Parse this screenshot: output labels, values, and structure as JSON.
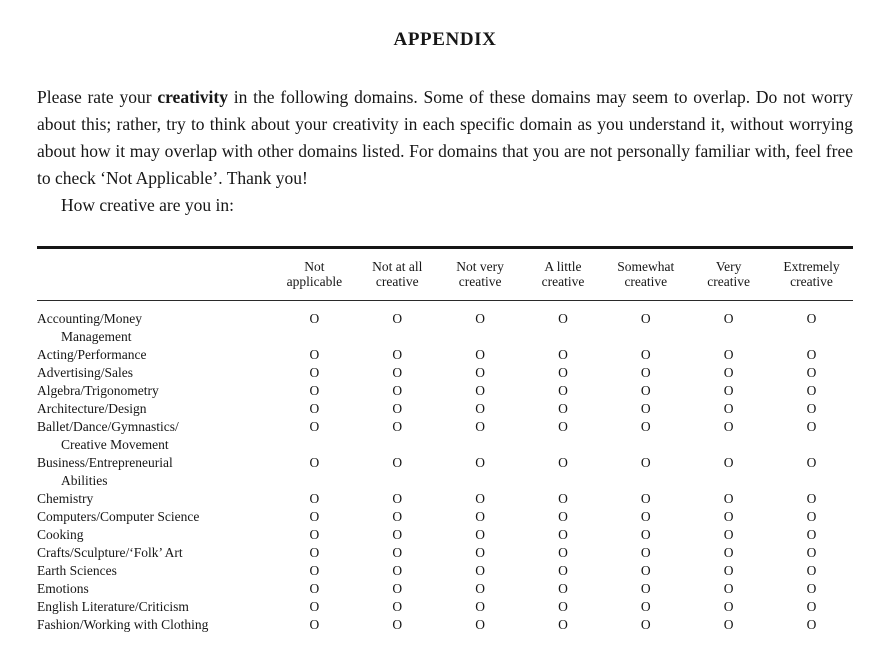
{
  "page": {
    "title": "APPENDIX",
    "intro": {
      "before_bold": "Please rate your ",
      "bold": "creativity",
      "after_bold": " in the following domains. Some of these domains may seem to overlap. Do not worry about this; rather, try to think about your creativity in each specific domain as you understand it, without worrying about how it may overlap with other domains listed. For domains that you are not personally familiar with, feel free to check ‘Not Applicable’. Thank you!"
    },
    "prompt": "How creative are you in:"
  },
  "table": {
    "bubble": "O",
    "columns": [
      {
        "line1": "Not",
        "line2": "applicable"
      },
      {
        "line1": "Not at all",
        "line2": "creative"
      },
      {
        "line1": "Not very",
        "line2": "creative"
      },
      {
        "line1": "A little",
        "line2": "creative"
      },
      {
        "line1": "Somewhat",
        "line2": "creative"
      },
      {
        "line1": "Very",
        "line2": "creative"
      },
      {
        "line1": "Extremely",
        "line2": "creative"
      }
    ],
    "rows": [
      {
        "line1": "Accounting/Money",
        "line2": "Management"
      },
      {
        "line1": "Acting/Performance"
      },
      {
        "line1": "Advertising/Sales"
      },
      {
        "line1": "Algebra/Trigonometry"
      },
      {
        "line1": "Architecture/Design"
      },
      {
        "line1": "Ballet/Dance/Gymnastics/",
        "line2": "Creative Movement"
      },
      {
        "line1": "Business/Entrepreneurial",
        "line2": "Abilities"
      },
      {
        "line1": "Chemistry"
      },
      {
        "line1": "Computers/Computer Science"
      },
      {
        "line1": "Cooking"
      },
      {
        "line1": "Crafts/Sculpture/‘Folk’ Art"
      },
      {
        "line1": "Earth Sciences"
      },
      {
        "line1": "Emotions"
      },
      {
        "line1": "English Literature/Criticism"
      },
      {
        "line1": "Fashion/Working with Clothing"
      }
    ]
  }
}
